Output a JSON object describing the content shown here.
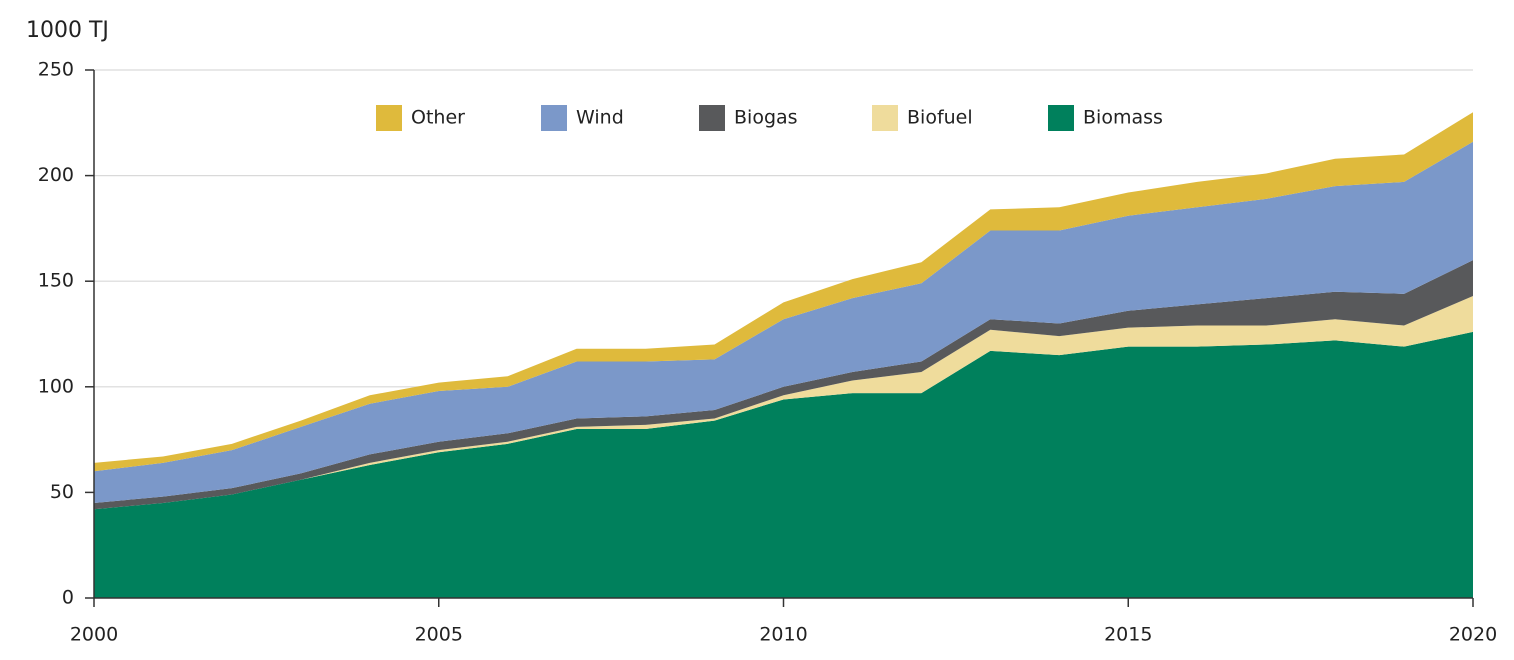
{
  "chart_data": {
    "type": "stacked_area",
    "y_axis_label": "1000 TJ",
    "x": [
      2000,
      2001,
      2002,
      2003,
      2004,
      2005,
      2006,
      2007,
      2008,
      2009,
      2010,
      2011,
      2012,
      2013,
      2014,
      2015,
      2016,
      2017,
      2018,
      2019,
      2020
    ],
    "series": [
      {
        "name": "Other",
        "color": "#dfba3c",
        "values": [
          4,
          3,
          3,
          3,
          4,
          4,
          5,
          6,
          6,
          7,
          8,
          9,
          10,
          10,
          11,
          11,
          12,
          12,
          13,
          13,
          14
        ]
      },
      {
        "name": "Wind",
        "color": "#7b98c9",
        "values": [
          15,
          16,
          18,
          22,
          24,
          24,
          22,
          27,
          26,
          24,
          32,
          35,
          37,
          42,
          44,
          45,
          46,
          47,
          50,
          53,
          56
        ]
      },
      {
        "name": "Biogas",
        "color": "#58595b",
        "values": [
          3,
          3,
          3,
          3,
          4,
          4,
          4,
          4,
          4,
          4,
          4,
          4,
          5,
          5,
          6,
          8,
          10,
          13,
          13,
          15,
          17
        ]
      },
      {
        "name": "Biofuel",
        "color": "#efdc9c",
        "values": [
          0,
          0,
          0,
          0,
          1,
          1,
          1,
          1,
          2,
          1,
          2,
          6,
          10,
          10,
          9,
          9,
          10,
          9,
          10,
          10,
          17
        ]
      },
      {
        "name": "Biomass",
        "color": "#00805c",
        "values": [
          42,
          45,
          49,
          56,
          63,
          69,
          73,
          80,
          80,
          84,
          94,
          97,
          97,
          117,
          115,
          119,
          119,
          120,
          122,
          119,
          126
        ]
      }
    ],
    "xlim": [
      2000,
      2020
    ],
    "xticks": [
      2000,
      2005,
      2010,
      2015,
      2020
    ],
    "ylim": [
      0,
      250
    ],
    "yticks": [
      0,
      50,
      100,
      150,
      200,
      250
    ],
    "grid": true,
    "legend": "top"
  }
}
